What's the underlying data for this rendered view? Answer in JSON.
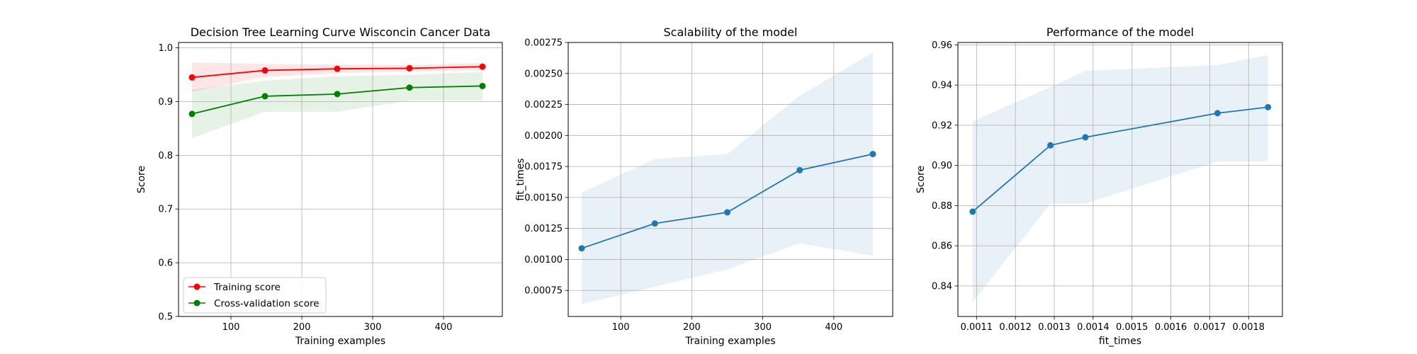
{
  "chart_data": [
    {
      "type": "line",
      "title": "Decision Tree Learning Curve Wisconcin Cancer Data",
      "xlabel": "Training examples",
      "ylabel": "Score",
      "xlim": [
        26,
        483
      ],
      "ylim": [
        0.5,
        1.01
      ],
      "xticks": [
        100,
        200,
        300,
        400
      ],
      "yticks": [
        0.5,
        0.6,
        0.7,
        0.8,
        0.9,
        1.0
      ],
      "ytick_decimals": 1,
      "grid": true,
      "legend": "lower-left",
      "series": [
        {
          "name": "Training score",
          "color": "#ff0000",
          "x": [
            45,
            148,
            250,
            352,
            455
          ],
          "y": [
            0.945,
            0.958,
            0.961,
            0.962,
            0.965
          ],
          "band_low": [
            0.918,
            0.946,
            0.953,
            0.956,
            0.958
          ],
          "band_high": [
            0.973,
            0.97,
            0.969,
            0.968,
            0.972
          ]
        },
        {
          "name": "Cross-validation score",
          "color": "#008000",
          "x": [
            45,
            148,
            250,
            352,
            455
          ],
          "y": [
            0.877,
            0.91,
            0.914,
            0.926,
            0.929
          ],
          "band_low": [
            0.832,
            0.881,
            0.881,
            0.902,
            0.902
          ],
          "band_high": [
            0.922,
            0.939,
            0.947,
            0.95,
            0.955
          ]
        }
      ]
    },
    {
      "type": "line",
      "title": "Scalability of the model",
      "xlabel": "Training examples",
      "ylabel": "fit_times",
      "xlim": [
        26,
        483
      ],
      "ylim": [
        0.00054,
        0.00275
      ],
      "xticks": [
        100,
        200,
        300,
        400
      ],
      "yticks": [
        0.00075,
        0.001,
        0.00125,
        0.0015,
        0.00175,
        0.002,
        0.00225,
        0.0025,
        0.00275
      ],
      "ytick_decimals": 5,
      "grid": true,
      "series": [
        {
          "color": "#1f77b4",
          "x": [
            45,
            148,
            250,
            352,
            455
          ],
          "y": [
            0.00109,
            0.00129,
            0.00138,
            0.00172,
            0.00185
          ],
          "band_low": [
            0.00064,
            0.00078,
            0.00092,
            0.00113,
            0.00103
          ],
          "band_high": [
            0.00154,
            0.00181,
            0.00185,
            0.00232,
            0.00267
          ]
        }
      ]
    },
    {
      "type": "line",
      "title": "Performance of the model",
      "xlabel": "fit_times",
      "ylabel": "Score",
      "xlim": [
        0.001052,
        0.001887
      ],
      "ylim": [
        0.8248,
        0.9612
      ],
      "xticks": [
        0.0011,
        0.0012,
        0.0013,
        0.0014,
        0.0015,
        0.0016,
        0.0017,
        0.0018
      ],
      "yticks": [
        0.84,
        0.86,
        0.88,
        0.9,
        0.92,
        0.94,
        0.96
      ],
      "xtick_decimals": 4,
      "ytick_decimals": 2,
      "grid": true,
      "series": [
        {
          "color": "#1f77b4",
          "x": [
            0.00109,
            0.00129,
            0.00138,
            0.00172,
            0.00185
          ],
          "y": [
            0.877,
            0.91,
            0.914,
            0.926,
            0.929
          ],
          "band_low": [
            0.832,
            0.881,
            0.881,
            0.902,
            0.902
          ],
          "band_high": [
            0.922,
            0.939,
            0.947,
            0.95,
            0.955
          ]
        }
      ]
    }
  ]
}
